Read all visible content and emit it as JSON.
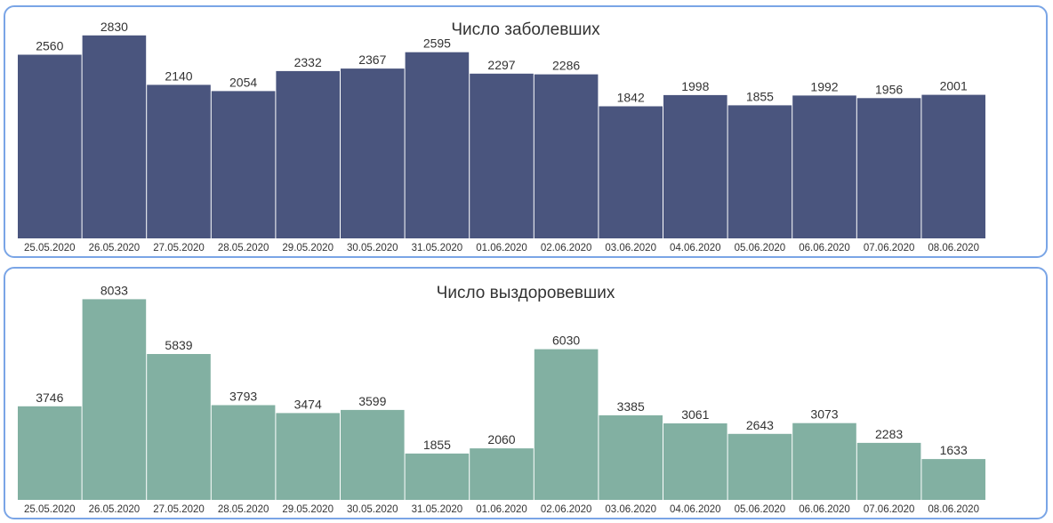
{
  "chart_data": [
    {
      "type": "bar",
      "title": "Число заболевших",
      "xlabel": "",
      "ylabel": "",
      "color": "#4a557e",
      "categories": [
        "25.05.2020",
        "26.05.2020",
        "27.05.2020",
        "28.05.2020",
        "29.05.2020",
        "30.05.2020",
        "31.05.2020",
        "01.06.2020",
        "02.06.2020",
        "03.06.2020",
        "04.06.2020",
        "05.06.2020",
        "06.06.2020",
        "07.06.2020",
        "08.06.2020"
      ],
      "values": [
        2560,
        2830,
        2140,
        2054,
        2332,
        2367,
        2595,
        2297,
        2286,
        1842,
        1998,
        1855,
        1992,
        1956,
        2001
      ],
      "ylim": [
        0,
        3100
      ],
      "grid": false,
      "legend": "none"
    },
    {
      "type": "bar",
      "title": "Число выздоровевших",
      "xlabel": "",
      "ylabel": "",
      "color": "#82b0a2",
      "categories": [
        "25.05.2020",
        "26.05.2020",
        "27.05.2020",
        "28.05.2020",
        "29.05.2020",
        "30.05.2020",
        "31.05.2020",
        "01.06.2020",
        "02.06.2020",
        "03.06.2020",
        "04.06.2020",
        "05.06.2020",
        "06.06.2020",
        "07.06.2020",
        "08.06.2020"
      ],
      "values": [
        3746,
        8033,
        5839,
        3793,
        3474,
        3599,
        1855,
        2060,
        6030,
        3385,
        3061,
        2643,
        3073,
        2283,
        1633
      ],
      "ylim": [
        0,
        8900
      ],
      "grid": false,
      "legend": "none"
    }
  ]
}
